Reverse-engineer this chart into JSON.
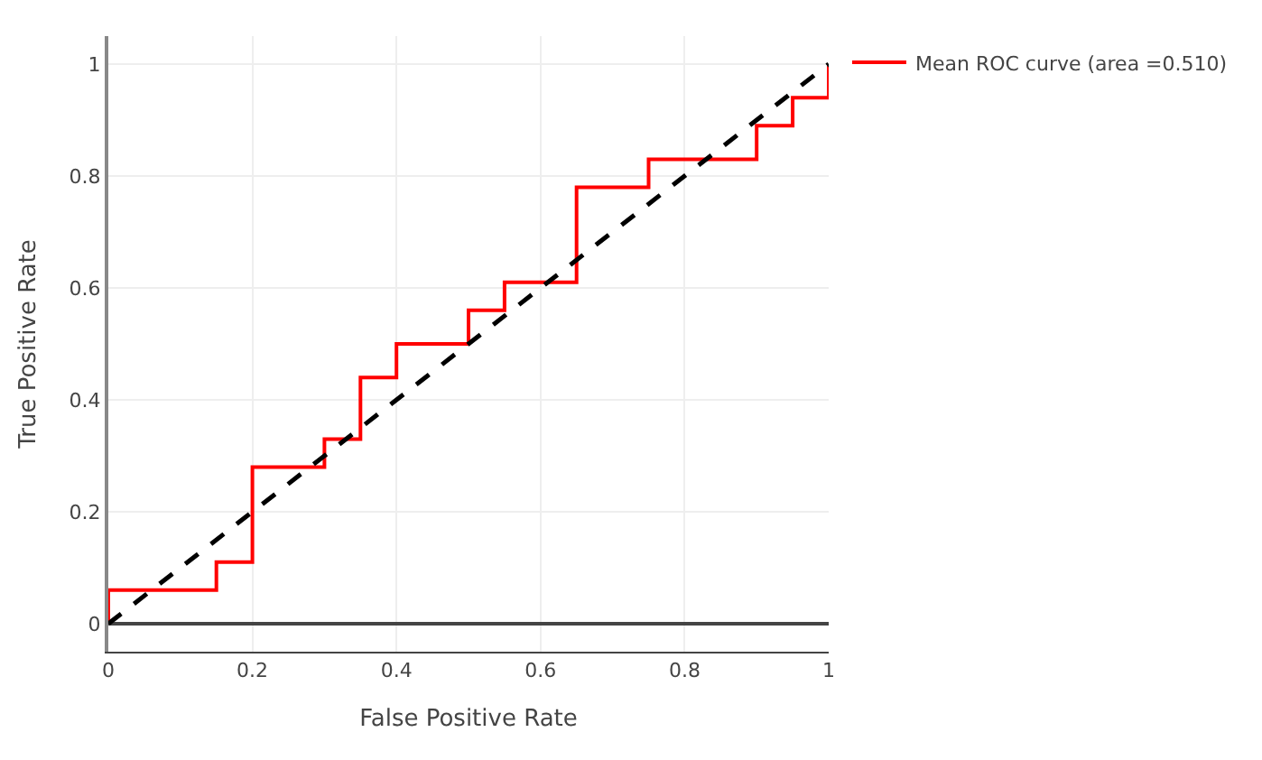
{
  "chart_data": {
    "type": "line",
    "xlabel": "False Positive Rate",
    "ylabel": "True Positive Rate",
    "xlim": [
      0,
      1
    ],
    "ylim": [
      -0.05,
      1.05
    ],
    "xticks": [
      0,
      0.2,
      0.4,
      0.6,
      0.8,
      1
    ],
    "yticks": [
      0,
      0.2,
      0.4,
      0.6,
      0.8,
      1
    ],
    "grid": true,
    "legend": "top right",
    "series": [
      {
        "type": "step",
        "name": "Mean ROC curve (area =0.510)",
        "color": "#ff0000",
        "x": [
          0,
          0.15,
          0.2,
          0.3,
          0.35,
          0.4,
          0.5,
          0.55,
          0.65,
          0.75,
          0.9,
          0.95,
          1,
          1
        ],
        "values": [
          0,
          0.06,
          0.11,
          0.28,
          0.33,
          0.44,
          0.5,
          0.56,
          0.61,
          0.78,
          0.83,
          0.89,
          0.94,
          1
        ],
        "line_style": "solid"
      },
      {
        "color": "#000000",
        "x": [
          0,
          1
        ],
        "values": [
          0,
          1
        ],
        "line_style": "dashed"
      }
    ]
  }
}
